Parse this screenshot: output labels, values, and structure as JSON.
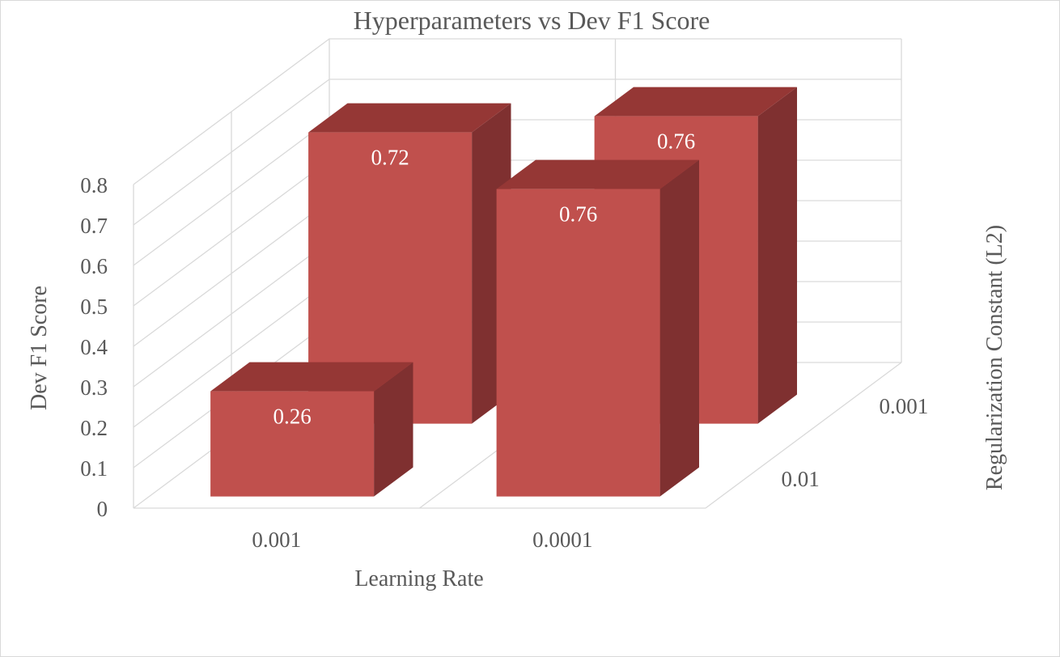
{
  "chart_data": {
    "type": "bar",
    "subtype": "3d-column",
    "title": "Hyperparameters vs Dev F1 Score",
    "xlabel": "Learning Rate",
    "ylabel": "Dev F1 Score",
    "zlabel": "Regularization Constant (L2)",
    "x_categories": [
      "0.001",
      "0.0001"
    ],
    "z_categories": [
      "0.01",
      "0.001"
    ],
    "ylim": [
      0,
      0.8
    ],
    "yticks": [
      "0",
      "0.1",
      "0.2",
      "0.3",
      "0.4",
      "0.5",
      "0.6",
      "0.7",
      "0.8"
    ],
    "bars": [
      {
        "x": "0.001",
        "z": "0.01",
        "value": 0.26,
        "label": "0.26"
      },
      {
        "x": "0.001",
        "z": "0.001",
        "value": 0.72,
        "label": "0.72"
      },
      {
        "x": "0.0001",
        "z": "0.01",
        "value": 0.76,
        "label": "0.76"
      },
      {
        "x": "0.0001",
        "z": "0.001",
        "value": 0.76,
        "label": "0.76"
      }
    ],
    "colors": {
      "front": "#c0504d",
      "top": "#953735",
      "side": "#7f3030",
      "grid": "#d9d9d9",
      "text": "#595959"
    },
    "gridlines": true,
    "legend": "none"
  }
}
